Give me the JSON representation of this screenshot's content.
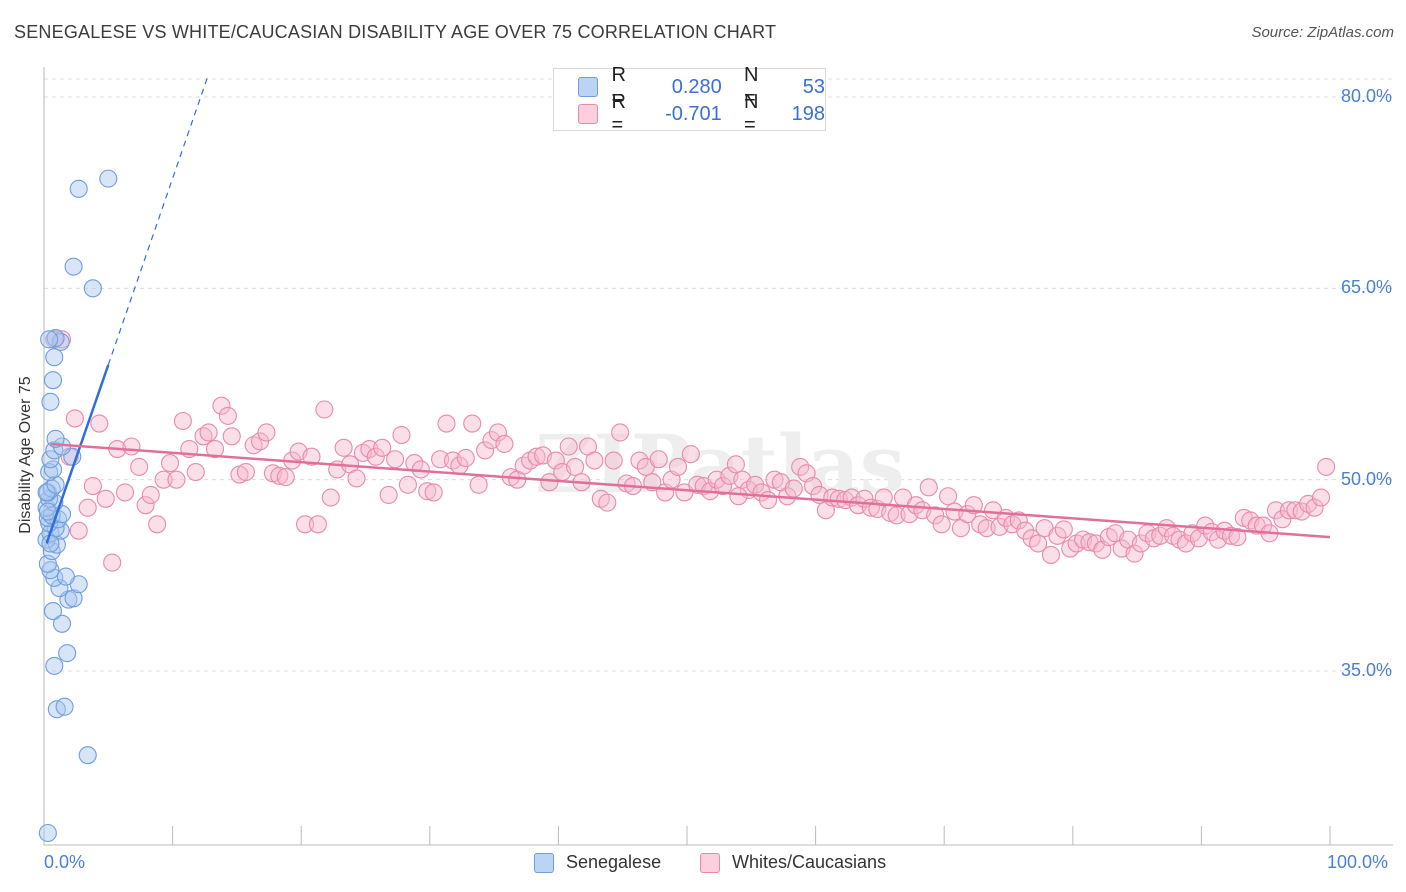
{
  "chart_data": {
    "type": "scatter",
    "title": "SENEGALESE VS WHITE/CAUCASIAN DISABILITY AGE OVER 75 CORRELATION CHART",
    "source": "Source: ZipAtlas.com",
    "xlabel": "",
    "ylabel": "Disability Age Over 75",
    "xlim": [
      0,
      100
    ],
    "ylim": [
      20,
      82
    ],
    "y_ticks": [
      "80.0%",
      "65.0%",
      "50.0%",
      "35.0%"
    ],
    "y_tick_values": [
      80,
      65,
      50,
      35
    ],
    "x_tick_labels": [
      "0.0%",
      "100.0%"
    ],
    "grid": true,
    "legend_position": "top-center",
    "watermark": "ZIPatlas",
    "series": [
      {
        "name": "Senegalese",
        "color": "#a9c6ee",
        "stroke": "#6f9de0",
        "line_color": "#2f6fd6",
        "R": "0.280",
        "N": "53",
        "trend": {
          "x0": 0.2,
          "y0": 45.0,
          "x1": 5.0,
          "y1": 59.0,
          "dash_x1": 12.8,
          "dash_y1": 81.8
        },
        "points": [
          [
            0.3,
            22.3
          ],
          [
            3.4,
            28.4
          ],
          [
            1.0,
            32.0
          ],
          [
            1.6,
            32.2
          ],
          [
            0.8,
            35.4
          ],
          [
            1.8,
            36.4
          ],
          [
            1.4,
            38.7
          ],
          [
            0.7,
            39.7
          ],
          [
            1.9,
            40.6
          ],
          [
            2.3,
            40.7
          ],
          [
            1.2,
            41.5
          ],
          [
            2.7,
            41.8
          ],
          [
            0.8,
            42.3
          ],
          [
            1.7,
            42.4
          ],
          [
            0.5,
            42.9
          ],
          [
            0.3,
            43.4
          ],
          [
            0.6,
            44.4
          ],
          [
            1.0,
            44.9
          ],
          [
            0.2,
            45.3
          ],
          [
            0.5,
            45.8
          ],
          [
            1.3,
            46.0
          ],
          [
            0.9,
            46.2
          ],
          [
            0.4,
            46.6
          ],
          [
            1.1,
            46.9
          ],
          [
            0.3,
            47.0
          ],
          [
            0.6,
            47.2
          ],
          [
            1.4,
            47.3
          ],
          [
            0.2,
            47.8
          ],
          [
            0.8,
            48.2
          ],
          [
            0.4,
            48.5
          ],
          [
            0.3,
            49.0
          ],
          [
            0.6,
            49.3
          ],
          [
            0.2,
            49.0
          ],
          [
            0.9,
            49.6
          ],
          [
            0.4,
            50.6
          ],
          [
            0.7,
            50.8
          ],
          [
            0.5,
            51.6
          ],
          [
            2.2,
            51.8
          ],
          [
            0.8,
            52.3
          ],
          [
            1.4,
            52.6
          ],
          [
            0.9,
            53.2
          ],
          [
            0.5,
            56.1
          ],
          [
            0.7,
            57.8
          ],
          [
            0.8,
            59.6
          ],
          [
            1.3,
            60.8
          ],
          [
            0.9,
            61.1
          ],
          [
            3.8,
            65.0
          ],
          [
            2.3,
            66.7
          ],
          [
            2.7,
            72.8
          ],
          [
            5.0,
            73.6
          ],
          [
            0.4,
            61.0
          ],
          [
            0.3,
            47.5
          ],
          [
            0.5,
            45.0
          ]
        ]
      },
      {
        "name": "Whites/Caucasians",
        "color": "#f6b8cd",
        "stroke": "#e98aab",
        "line_color": "#e0709a",
        "R": "-0.701",
        "N": "198",
        "trend": {
          "x0": 0.5,
          "y0": 52.8,
          "x1": 100,
          "y1": 45.5
        },
        "points": [
          [
            0.8,
            61.0
          ],
          [
            1.4,
            61.0
          ],
          [
            2.0,
            51.8
          ],
          [
            2.4,
            54.8
          ],
          [
            2.7,
            46.0
          ],
          [
            3.4,
            47.8
          ],
          [
            3.8,
            49.5
          ],
          [
            4.3,
            54.4
          ],
          [
            4.8,
            48.5
          ],
          [
            5.3,
            43.5
          ],
          [
            5.7,
            52.4
          ],
          [
            6.3,
            49.0
          ],
          [
            6.8,
            52.6
          ],
          [
            7.4,
            51.0
          ],
          [
            7.9,
            48.0
          ],
          [
            8.3,
            48.8
          ],
          [
            8.8,
            46.5
          ],
          [
            9.3,
            50.0
          ],
          [
            9.8,
            51.3
          ],
          [
            10.3,
            50.0
          ],
          [
            10.8,
            54.6
          ],
          [
            11.3,
            52.4
          ],
          [
            11.8,
            50.6
          ],
          [
            12.4,
            53.4
          ],
          [
            12.8,
            53.7
          ],
          [
            13.3,
            52.4
          ],
          [
            13.8,
            55.8
          ],
          [
            14.3,
            55.0
          ],
          [
            14.6,
            53.4
          ],
          [
            15.2,
            50.4
          ],
          [
            15.7,
            50.6
          ],
          [
            16.3,
            52.7
          ],
          [
            16.8,
            53.0
          ],
          [
            17.3,
            53.7
          ],
          [
            17.8,
            50.5
          ],
          [
            18.3,
            50.3
          ],
          [
            18.8,
            50.2
          ],
          [
            19.3,
            51.5
          ],
          [
            19.8,
            52.2
          ],
          [
            20.3,
            46.5
          ],
          [
            20.8,
            51.8
          ],
          [
            21.3,
            46.5
          ],
          [
            21.8,
            55.5
          ],
          [
            22.3,
            48.6
          ],
          [
            22.8,
            50.8
          ],
          [
            23.3,
            52.5
          ],
          [
            23.8,
            51.2
          ],
          [
            24.3,
            50.1
          ],
          [
            24.8,
            52.1
          ],
          [
            25.3,
            52.4
          ],
          [
            25.8,
            51.8
          ],
          [
            26.3,
            52.5
          ],
          [
            26.8,
            48.8
          ],
          [
            27.3,
            51.6
          ],
          [
            27.8,
            53.5
          ],
          [
            28.3,
            49.6
          ],
          [
            28.8,
            51.3
          ],
          [
            29.3,
            50.8
          ],
          [
            29.8,
            49.1
          ],
          [
            30.3,
            49.0
          ],
          [
            30.8,
            51.6
          ],
          [
            31.3,
            54.4
          ],
          [
            31.8,
            51.5
          ],
          [
            32.3,
            51.1
          ],
          [
            32.8,
            51.7
          ],
          [
            33.3,
            54.4
          ],
          [
            33.8,
            49.6
          ],
          [
            34.3,
            52.3
          ],
          [
            34.8,
            53.1
          ],
          [
            35.3,
            53.7
          ],
          [
            35.8,
            52.8
          ],
          [
            36.3,
            50.2
          ],
          [
            36.8,
            50.0
          ],
          [
            37.3,
            51.1
          ],
          [
            37.8,
            51.5
          ],
          [
            38.3,
            51.8
          ],
          [
            38.8,
            51.9
          ],
          [
            39.3,
            49.8
          ],
          [
            39.8,
            51.5
          ],
          [
            40.3,
            50.6
          ],
          [
            40.8,
            52.6
          ],
          [
            41.3,
            51.0
          ],
          [
            41.8,
            49.8
          ],
          [
            42.3,
            52.6
          ],
          [
            42.8,
            51.5
          ],
          [
            43.3,
            48.5
          ],
          [
            43.8,
            48.2
          ],
          [
            44.3,
            51.5
          ],
          [
            44.8,
            53.7
          ],
          [
            45.3,
            49.7
          ],
          [
            45.8,
            49.5
          ],
          [
            46.3,
            51.5
          ],
          [
            46.8,
            51.0
          ],
          [
            47.3,
            49.8
          ],
          [
            47.8,
            51.6
          ],
          [
            48.3,
            49.0
          ],
          [
            48.8,
            50.0
          ],
          [
            49.3,
            51.0
          ],
          [
            49.8,
            49.0
          ],
          [
            50.3,
            52.0
          ],
          [
            50.8,
            49.6
          ],
          [
            51.3,
            49.5
          ],
          [
            51.8,
            49.1
          ],
          [
            52.3,
            50.0
          ],
          [
            52.8,
            49.5
          ],
          [
            53.3,
            50.3
          ],
          [
            53.8,
            51.2
          ],
          [
            54.3,
            50.0
          ],
          [
            54.8,
            49.2
          ],
          [
            55.3,
            49.6
          ],
          [
            55.8,
            49.0
          ],
          [
            56.3,
            48.4
          ],
          [
            56.8,
            50.0
          ],
          [
            57.3,
            49.8
          ],
          [
            57.8,
            48.7
          ],
          [
            58.3,
            49.3
          ],
          [
            58.8,
            51.0
          ],
          [
            59.3,
            50.5
          ],
          [
            59.8,
            49.5
          ],
          [
            60.3,
            48.8
          ],
          [
            60.8,
            47.6
          ],
          [
            61.3,
            48.6
          ],
          [
            61.8,
            48.5
          ],
          [
            62.3,
            48.4
          ],
          [
            62.8,
            48.6
          ],
          [
            63.3,
            48.0
          ],
          [
            63.8,
            48.5
          ],
          [
            64.3,
            47.8
          ],
          [
            64.8,
            47.7
          ],
          [
            65.3,
            48.6
          ],
          [
            65.8,
            47.4
          ],
          [
            66.3,
            47.2
          ],
          [
            66.8,
            48.6
          ],
          [
            67.3,
            47.3
          ],
          [
            67.8,
            48.0
          ],
          [
            68.3,
            47.6
          ],
          [
            68.8,
            49.4
          ],
          [
            69.3,
            47.2
          ],
          [
            69.8,
            46.5
          ],
          [
            70.3,
            48.7
          ],
          [
            70.8,
            47.5
          ],
          [
            71.3,
            46.2
          ],
          [
            71.8,
            47.3
          ],
          [
            72.3,
            48.0
          ],
          [
            72.8,
            46.5
          ],
          [
            73.3,
            46.2
          ],
          [
            73.8,
            47.6
          ],
          [
            74.3,
            46.3
          ],
          [
            74.8,
            47.0
          ],
          [
            75.3,
            46.5
          ],
          [
            75.8,
            46.8
          ],
          [
            76.3,
            46.0
          ],
          [
            76.8,
            45.4
          ],
          [
            77.3,
            45.0
          ],
          [
            77.8,
            46.2
          ],
          [
            78.3,
            44.1
          ],
          [
            78.8,
            45.6
          ],
          [
            79.3,
            46.1
          ],
          [
            79.8,
            44.6
          ],
          [
            80.3,
            45.0
          ],
          [
            80.8,
            45.3
          ],
          [
            81.3,
            45.1
          ],
          [
            81.8,
            45.0
          ],
          [
            82.3,
            44.5
          ],
          [
            82.8,
            45.5
          ],
          [
            83.3,
            45.8
          ],
          [
            83.8,
            44.6
          ],
          [
            84.3,
            45.3
          ],
          [
            84.8,
            44.2
          ],
          [
            85.3,
            45.0
          ],
          [
            85.8,
            45.8
          ],
          [
            86.3,
            45.4
          ],
          [
            86.8,
            45.6
          ],
          [
            87.3,
            46.2
          ],
          [
            87.8,
            45.6
          ],
          [
            88.3,
            45.3
          ],
          [
            88.8,
            45.0
          ],
          [
            89.3,
            45.8
          ],
          [
            89.8,
            45.4
          ],
          [
            90.3,
            46.4
          ],
          [
            90.8,
            45.9
          ],
          [
            91.3,
            45.3
          ],
          [
            91.8,
            46.0
          ],
          [
            92.3,
            45.6
          ],
          [
            92.8,
            45.5
          ],
          [
            93.3,
            47.0
          ],
          [
            93.8,
            46.8
          ],
          [
            94.3,
            46.4
          ],
          [
            94.8,
            46.4
          ],
          [
            95.3,
            45.8
          ],
          [
            95.8,
            47.6
          ],
          [
            96.3,
            46.9
          ],
          [
            96.8,
            47.6
          ],
          [
            97.3,
            47.6
          ],
          [
            97.8,
            47.5
          ],
          [
            98.3,
            48.1
          ],
          [
            98.8,
            47.8
          ],
          [
            99.3,
            48.6
          ],
          [
            99.7,
            51.0
          ],
          [
            54.0,
            48.7
          ]
        ]
      }
    ]
  },
  "legend": {
    "r_label": "R =",
    "n_label": "N ="
  }
}
